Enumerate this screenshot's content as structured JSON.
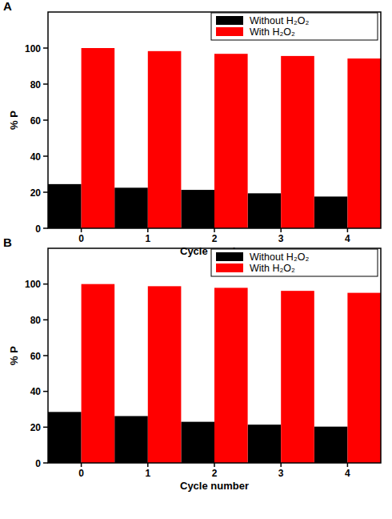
{
  "chart_data": [
    {
      "type": "bar",
      "title": "A",
      "x_label": "Cycle number",
      "y_label": "% P",
      "categories": [
        "0",
        "1",
        "2",
        "3",
        "4"
      ],
      "series": [
        {
          "name": "Without H₂O₂",
          "color": "#000000",
          "values": [
            24.5,
            22.5,
            21.3,
            19.4,
            17.6
          ]
        },
        {
          "name": "With H₂O₂",
          "color": "#ff0000",
          "values": [
            100,
            98.3,
            96.8,
            95.6,
            94.2
          ]
        }
      ],
      "ylim": [
        0,
        120
      ],
      "yticks": [
        0,
        20,
        40,
        60,
        80,
        100
      ],
      "grid": false,
      "legend": "upper right"
    },
    {
      "type": "bar",
      "title": "B",
      "x_label": "Cycle number",
      "y_label": "% P",
      "categories": [
        "0",
        "1",
        "2",
        "3",
        "4"
      ],
      "series": [
        {
          "name": "Without H₂O₂",
          "color": "#000000",
          "values": [
            28.5,
            26.2,
            23.0,
            21.4,
            20.3
          ]
        },
        {
          "name": "With H₂O₂",
          "color": "#ff0000",
          "values": [
            100,
            98.8,
            97.9,
            96.2,
            95.1
          ]
        }
      ],
      "ylim": [
        0,
        120
      ],
      "yticks": [
        0,
        20,
        40,
        60,
        80,
        100
      ],
      "grid": false,
      "legend": "upper right"
    }
  ]
}
